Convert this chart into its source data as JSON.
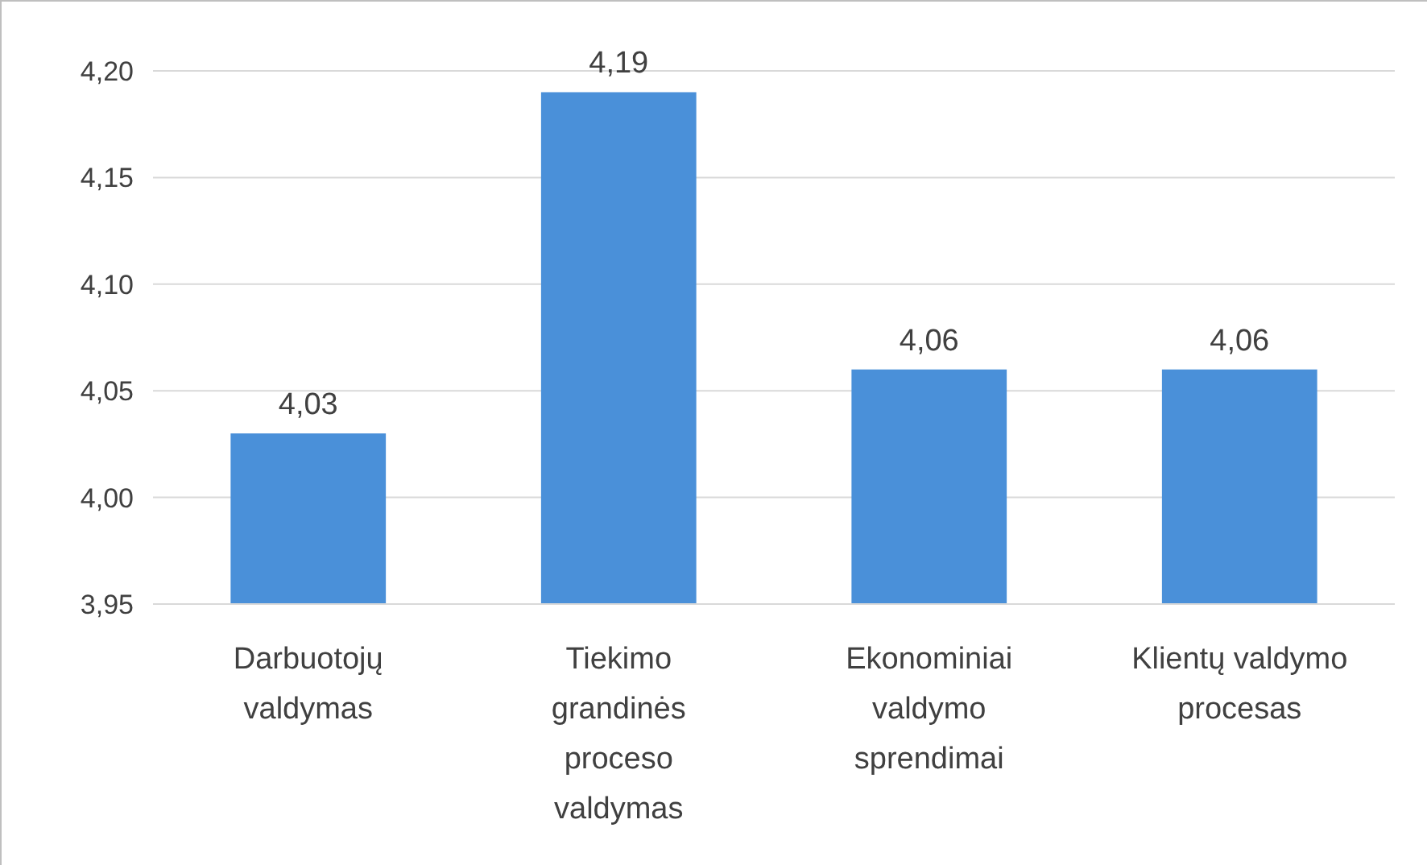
{
  "chart_data": {
    "type": "bar",
    "categories": [
      "Darbuotojų valdymas",
      "Tiekimo grandinės proceso valdymas",
      "Ekonominiai valdymo sprendimai",
      "Klientų valdymo procesas"
    ],
    "values": [
      4.03,
      4.19,
      4.06,
      4.06
    ],
    "color": "#4a90d9",
    "ylim": [
      3.95,
      4.2
    ],
    "yticks": [
      {
        "value": 3.95,
        "label": "3,95"
      },
      {
        "value": 4.0,
        "label": "4,00"
      },
      {
        "value": 4.05,
        "label": "4,05"
      },
      {
        "value": 4.1,
        "label": "4,10"
      },
      {
        "value": 4.15,
        "label": "4,15"
      },
      {
        "value": 4.2,
        "label": "4,20"
      }
    ],
    "value_labels": [
      "4,03",
      "4,19",
      "4,06",
      "4,06"
    ],
    "grid": "y"
  }
}
